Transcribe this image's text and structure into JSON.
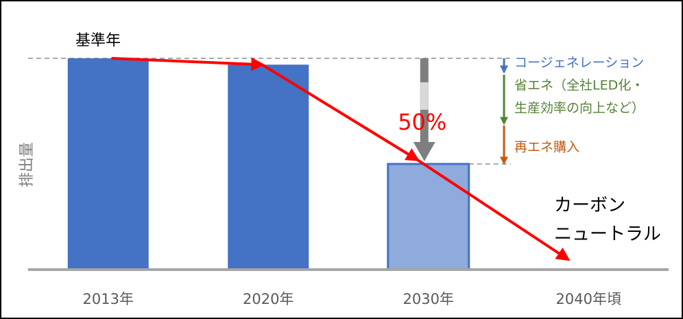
{
  "chart_data": {
    "type": "bar",
    "categories": [
      "2013年",
      "2020年",
      "2030年",
      "2040年頃"
    ],
    "values": [
      100,
      97,
      50,
      0
    ],
    "colors": [
      "#4472c4",
      "#4472c4",
      "#8faadc",
      "#4472c4"
    ],
    "ylim": [
      0,
      100
    ],
    "y_label": "排出量",
    "reference_label": "基準年",
    "reduction_label": "50%",
    "breakdown": [
      {
        "text": "コージェネレーション",
        "color": "#4472c4"
      },
      {
        "text": "省エネ（全社LED化・",
        "color": "#548235"
      },
      {
        "text": "生産効率の向上など）",
        "color": "#548235"
      },
      {
        "text": "再エネ購入",
        "color": "#c55a11"
      }
    ],
    "end_label": [
      "カーボン",
      "ニュートラル"
    ]
  }
}
